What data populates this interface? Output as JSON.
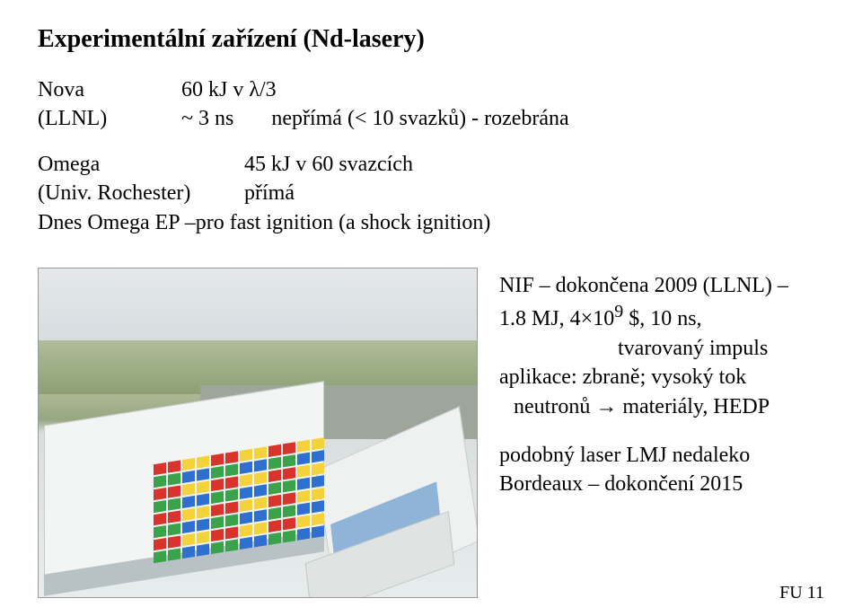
{
  "title": "Experimentální zařízení (Nd-lasery)",
  "block1": {
    "r1c1": "Nova",
    "r1c2": "60 kJ v λ/3",
    "r2c1": "(LLNL)",
    "r2c2a": "~ 3 ns",
    "r2c2b": "nepřímá (< 10 svazků) - rozebrána"
  },
  "block2": {
    "r1c1": "Omega",
    "r1c2": "45 kJ v 60 svazcích",
    "r2c1": "(Univ. Rochester)",
    "r2c2": "přímá",
    "r3": "Dnes  Omega EP –pro fast ignition (a shock ignition)"
  },
  "side": {
    "l1": "NIF – dokončena 2009 (LLNL) –",
    "l2": "1.8 MJ, 4×10",
    "l2sup": "9",
    "l2b": " $, 10 ns,",
    "l3": "tvarovaný impuls",
    "l4": "aplikace: zbraně; vysoký tok",
    "l5": "neutronů   → materiály, HEDP",
    "l6": "podobný laser LMJ nedaleko",
    "l7": "Bordeaux – dokončení 2015"
  },
  "footer": "FU  11"
}
